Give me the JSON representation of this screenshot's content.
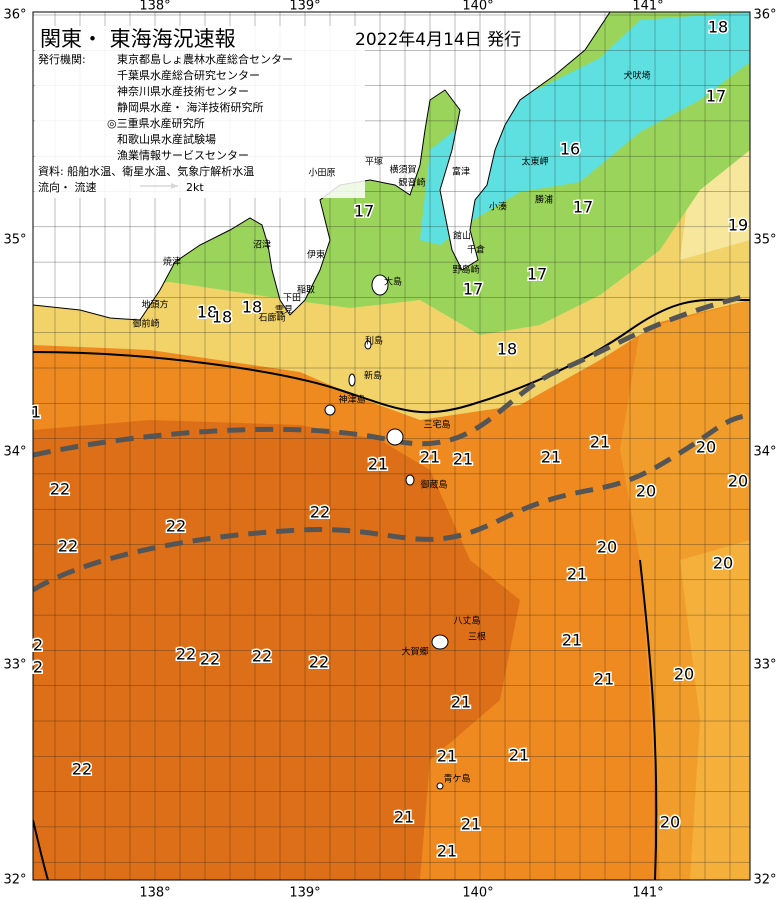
{
  "header": {
    "title": "関東・ 東海海況速報",
    "date": "2022年4月14日 発行",
    "issuer_label": "発行機関:",
    "issuers": [
      "東京都島しょ農林水産総合センター",
      "千葉県水産総合研究センター",
      "神奈川県水産技術センター",
      "静岡県水産・ 海洋技術研究所",
      "◎三重県水産研究所",
      "和歌山県水産試験場",
      "漁業情報サービスセンター"
    ],
    "source": "資料: 船舶水温、衛星水温、気象庁解析水温",
    "flow_label": "流向・ 流速",
    "flow_scale": "2kt"
  },
  "axes": {
    "lon_labels": [
      "138°",
      "139°",
      "140°",
      "141°"
    ],
    "lat_labels": [
      "36°",
      "35°",
      "34°",
      "33°",
      "32°"
    ]
  },
  "temperatures": [
    "18",
    "17",
    "16",
    "17",
    "19",
    "17",
    "17",
    "17",
    "18",
    "18",
    "18",
    "18",
    "1",
    "21",
    "20",
    "21",
    "21",
    "21",
    "21",
    "20",
    "22",
    "20",
    "22",
    "22",
    "22",
    "20",
    "20",
    "21",
    "2",
    "21",
    "2",
    "22",
    "22",
    "22",
    "22",
    "21",
    "20",
    "21",
    "21",
    "21",
    "22",
    "21",
    "21",
    "20",
    "21"
  ],
  "places": [
    "小田原",
    "平塚",
    "横須賀",
    "観音崎",
    "富津",
    "太東岬",
    "小湊",
    "勝浦",
    "館山",
    "千倉",
    "野島崎",
    "犬吠埼",
    "沼津",
    "焼津",
    "伊東",
    "稲取",
    "下田",
    "雲見",
    "石廊崎",
    "大島",
    "地頭方",
    "御前崎",
    "利島",
    "新島",
    "神津島",
    "三宅島",
    "御蔵島",
    "八丈島",
    "三根",
    "大賀郷",
    "青ケ島"
  ]
}
